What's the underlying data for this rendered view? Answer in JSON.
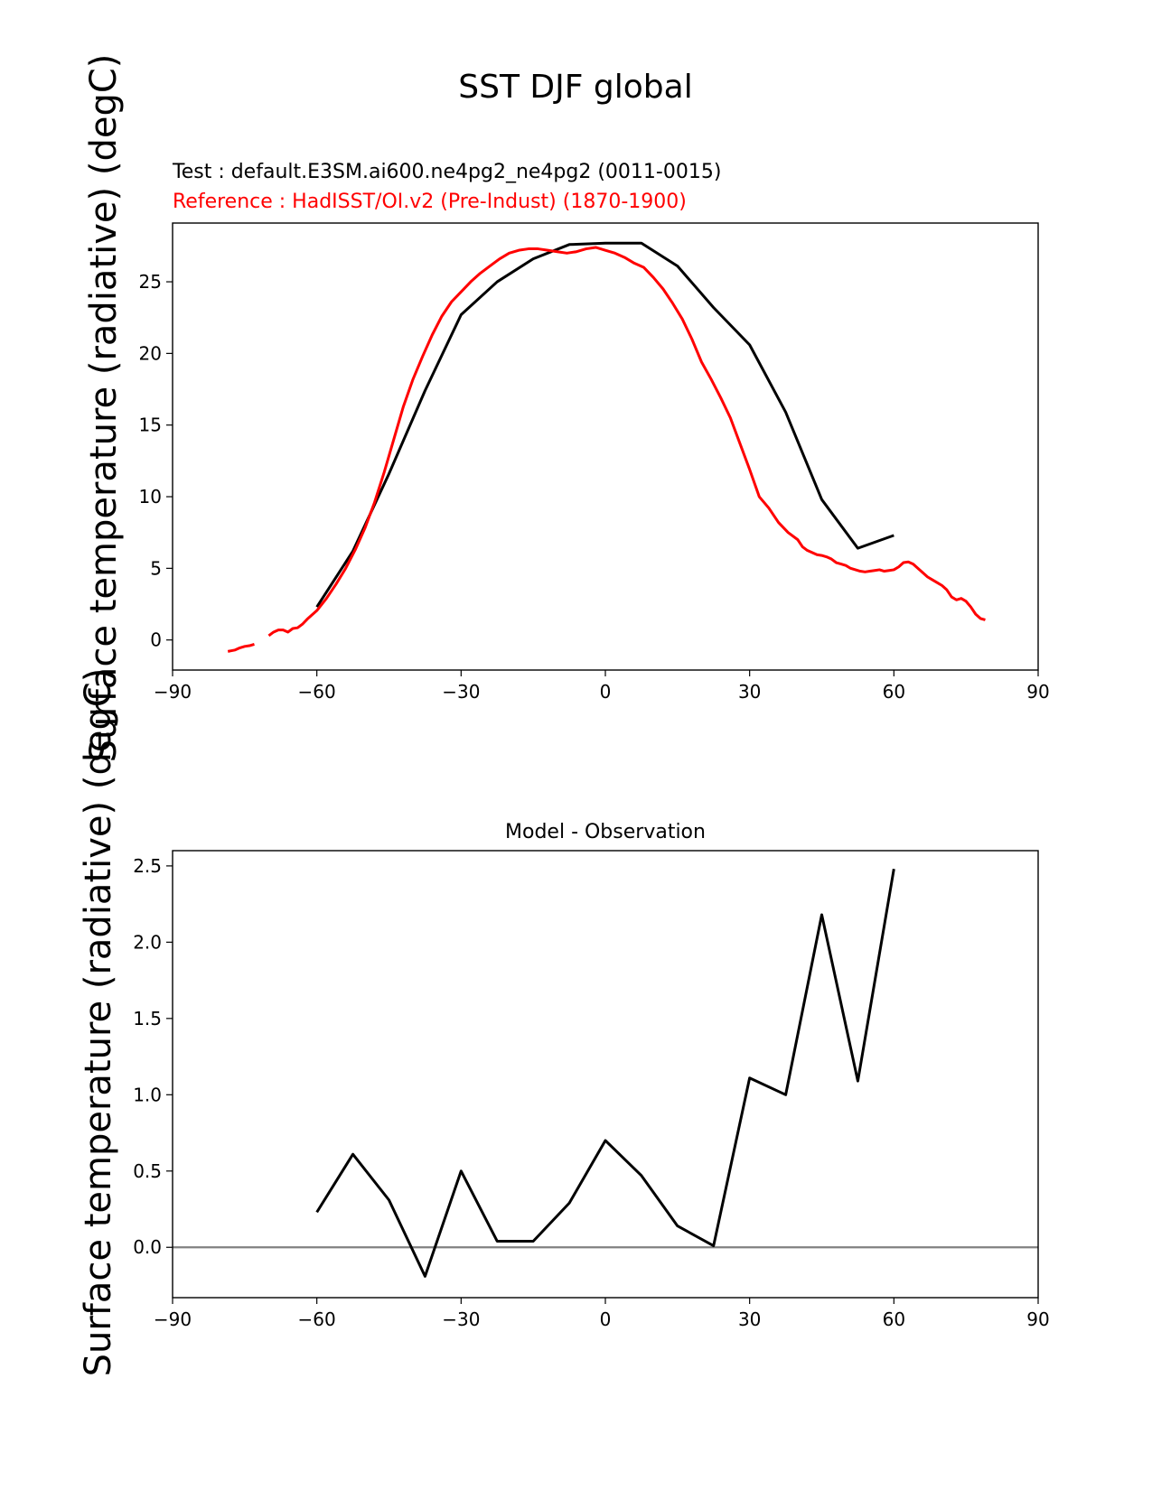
{
  "figure": {
    "title": "SST DJF global"
  },
  "chart_data": [
    {
      "type": "line",
      "title_test": "Test : default.E3SM.ai600.ne4pg2_ne4pg2 (0011-0015)",
      "title_reference": "Reference : HadISST/OI.v2 (Pre-Indust) (1870-1900)",
      "xlabel": "",
      "ylabel": "Surface temperature (radiative) (degC)",
      "xlim": [
        -90,
        90
      ],
      "ylim": [
        -2.1,
        29.1
      ],
      "xticks": [
        -90,
        -60,
        -30,
        0,
        30,
        60,
        90
      ],
      "xtick_labels": [
        "−90",
        "−60",
        "−30",
        "0",
        "30",
        "60",
        "90"
      ],
      "yticks": [
        0,
        5,
        10,
        15,
        20,
        25
      ],
      "ytick_labels": [
        "0",
        "5",
        "10",
        "15",
        "20",
        "25"
      ],
      "colors": {
        "test": "#000000",
        "reference": "#ff0000"
      },
      "series": [
        {
          "name": "Test",
          "color": "#000000",
          "x": [
            -60,
            -52.5,
            -45,
            -37.5,
            -30,
            -22.5,
            -15,
            -7.5,
            0,
            7.5,
            15,
            22.5,
            30,
            37.5,
            45,
            52.5,
            60
          ],
          "y": [
            2.3,
            6.2,
            11.6,
            17.4,
            22.7,
            25.0,
            26.6,
            27.6,
            27.7,
            27.7,
            26.1,
            23.2,
            20.6,
            15.9,
            9.8,
            6.4,
            7.3
          ]
        },
        {
          "name": "Reference",
          "color": "#ff0000",
          "segments": [
            {
              "x": [
                -78.5,
                -77,
                -76,
                -75,
                -74,
                -73
              ],
              "y": [
                -0.8,
                -0.7,
                -0.55,
                -0.45,
                -0.4,
                -0.3
              ]
            },
            {
              "x": [
                -70,
                -69,
                -68,
                -67,
                -66,
                -65,
                -64,
                -63,
                -62,
                -61,
                -60,
                -58,
                -56,
                -54,
                -52,
                -50,
                -48,
                -46,
                -44,
                -42,
                -40,
                -38,
                -36,
                -34,
                -32,
                -30,
                -28,
                -26,
                -24,
                -22,
                -20,
                -18,
                -16,
                -14,
                -12,
                -10,
                -8,
                -6,
                -4,
                -2,
                0,
                2,
                4,
                6,
                8,
                10,
                12,
                14,
                16,
                18,
                20,
                22,
                24,
                26,
                28,
                30,
                32,
                34,
                36,
                38,
                40,
                41,
                42,
                43,
                44,
                45,
                46,
                47,
                48,
                49,
                50,
                51,
                52,
                53,
                54,
                55,
                56,
                57,
                58,
                59,
                60,
                61,
                62,
                63,
                64,
                65,
                66,
                67,
                68,
                69,
                70,
                71,
                72,
                73,
                74,
                75,
                76,
                77,
                78,
                79
              ],
              "y": [
                0.3,
                0.55,
                0.7,
                0.7,
                0.55,
                0.8,
                0.85,
                1.1,
                1.45,
                1.75,
                2.05,
                2.9,
                3.9,
                5.0,
                6.3,
                7.8,
                9.6,
                11.7,
                14.0,
                16.3,
                18.2,
                19.8,
                21.3,
                22.6,
                23.6,
                24.3,
                25.0,
                25.6,
                26.1,
                26.6,
                27.0,
                27.2,
                27.3,
                27.3,
                27.2,
                27.1,
                27.0,
                27.1,
                27.3,
                27.4,
                27.2,
                27.0,
                26.7,
                26.3,
                26.0,
                25.3,
                24.5,
                23.5,
                22.4,
                21.0,
                19.4,
                18.2,
                16.9,
                15.5,
                13.7,
                11.9,
                10.0,
                9.2,
                8.2,
                7.5,
                7.0,
                6.5,
                6.25,
                6.1,
                5.95,
                5.9,
                5.8,
                5.65,
                5.4,
                5.3,
                5.2,
                5.0,
                4.9,
                4.8,
                4.75,
                4.8,
                4.85,
                4.9,
                4.8,
                4.85,
                4.9,
                5.1,
                5.4,
                5.45,
                5.3,
                5.0,
                4.7,
                4.4,
                4.2,
                4.0,
                3.8,
                3.5,
                3.0,
                2.8,
                2.9,
                2.7,
                2.3,
                1.8,
                1.5,
                1.4
              ]
            }
          ]
        }
      ]
    },
    {
      "type": "line",
      "title": "Model - Observation",
      "xlabel": "",
      "ylabel": "Surface temperature (radiative) (degC)",
      "xlim": [
        -90,
        90
      ],
      "ylim": [
        -0.33,
        2.6
      ],
      "xticks": [
        -90,
        -60,
        -30,
        0,
        30,
        60,
        90
      ],
      "xtick_labels": [
        "−90",
        "−60",
        "−30",
        "0",
        "30",
        "60",
        "90"
      ],
      "yticks": [
        0.0,
        0.5,
        1.0,
        1.5,
        2.0,
        2.5
      ],
      "ytick_labels": [
        "0.0",
        "0.5",
        "1.0",
        "1.5",
        "2.0",
        "2.5"
      ],
      "zero_line_color": "#808080",
      "series": [
        {
          "name": "Model - Observation",
          "color": "#000000",
          "x": [
            -60,
            -52.5,
            -45,
            -37.5,
            -30,
            -22.5,
            -15,
            -7.5,
            0,
            7.5,
            15,
            22.5,
            30,
            37.5,
            45,
            52.5,
            60
          ],
          "y": [
            0.23,
            0.61,
            0.31,
            -0.19,
            0.5,
            0.04,
            0.04,
            0.29,
            0.7,
            0.47,
            0.14,
            0.01,
            1.11,
            1.0,
            2.18,
            1.09,
            2.48
          ]
        }
      ]
    }
  ]
}
